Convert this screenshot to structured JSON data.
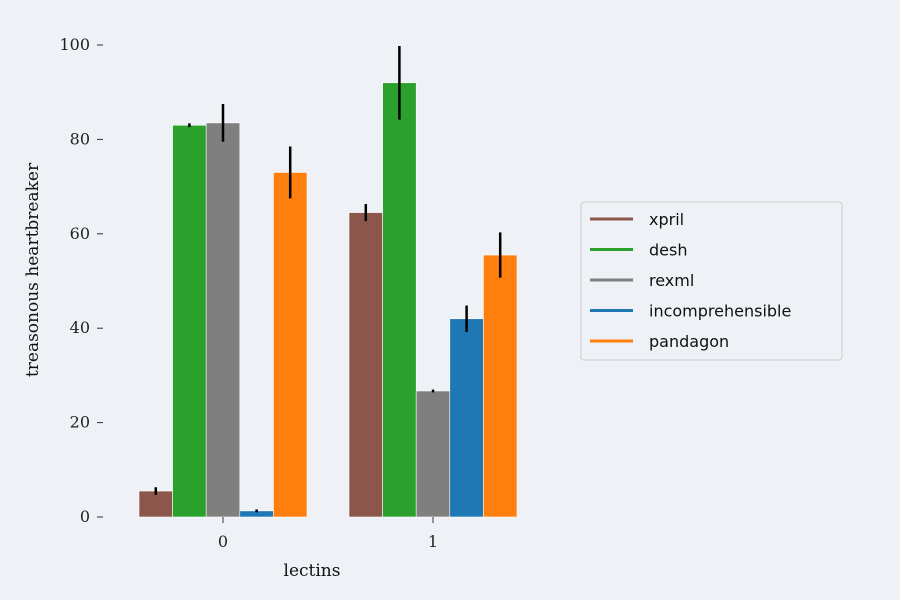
{
  "chart_data": {
    "type": "bar",
    "xlabel": "lectins",
    "ylabel": "treasonous heartbreaker",
    "ylim": [
      0,
      100
    ],
    "yticks": [
      0,
      20,
      40,
      60,
      80,
      100
    ],
    "categories": [
      "0",
      "1"
    ],
    "grid": false,
    "legend_position": "right",
    "series": [
      {
        "name": "xpril",
        "color": "#8c564b",
        "values": [
          5.5,
          64.5
        ],
        "errors": [
          0.8,
          1.8
        ]
      },
      {
        "name": "desh",
        "color": "#2ca02c",
        "values": [
          83,
          92
        ],
        "errors": [
          0.4,
          7.8
        ]
      },
      {
        "name": "rexml",
        "color": "#7f7f7f",
        "values": [
          83.5,
          26.7
        ],
        "errors": [
          4,
          0.3
        ]
      },
      {
        "name": "incomprehensible",
        "color": "#1f77b4",
        "values": [
          1.3,
          42
        ],
        "errors": [
          0.3,
          2.8
        ]
      },
      {
        "name": "pandagon",
        "color": "#ff7f0e",
        "values": [
          73,
          55.5
        ],
        "errors": [
          5.5,
          4.8
        ]
      }
    ]
  }
}
